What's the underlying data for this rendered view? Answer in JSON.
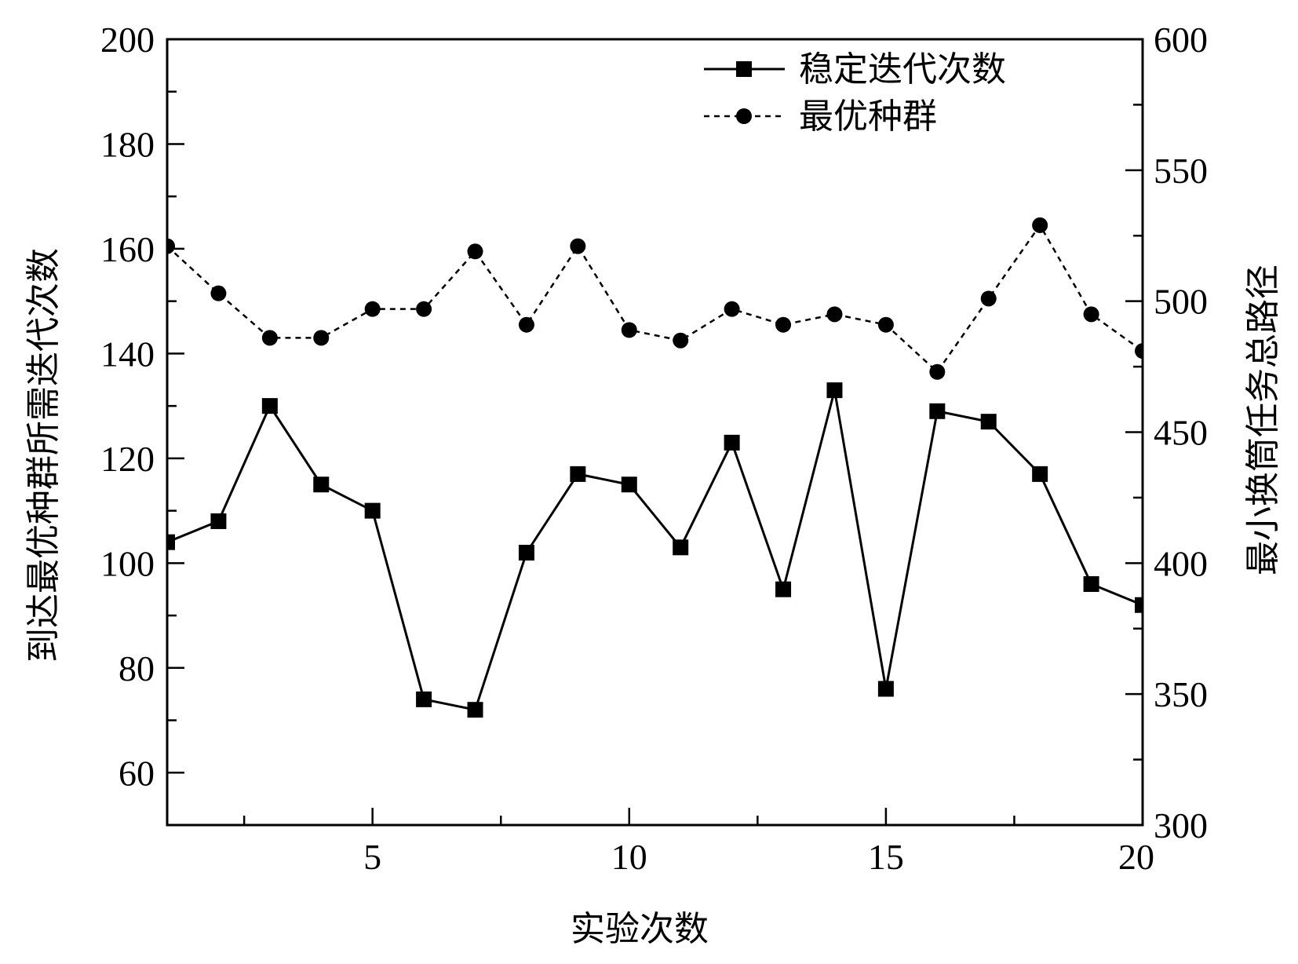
{
  "chart_data": {
    "type": "line",
    "xlabel": "实验次数",
    "ylabel_left": "到达最优种群所需迭代次数",
    "ylabel_right": "最小换筒任务总路径",
    "xlim": [
      1,
      20
    ],
    "ylim_left": [
      50,
      200
    ],
    "ylim_right": [
      300,
      600
    ],
    "x_ticks": [
      5,
      10,
      15,
      20
    ],
    "y_ticks_left": [
      60,
      80,
      100,
      120,
      140,
      160,
      180,
      200
    ],
    "y_ticks_right": [
      300,
      350,
      400,
      450,
      500,
      550,
      600
    ],
    "legend_position": "top-right",
    "grid": false,
    "x": [
      1,
      2,
      3,
      4,
      5,
      6,
      7,
      8,
      9,
      10,
      11,
      12,
      13,
      14,
      15,
      16,
      17,
      18,
      19,
      20
    ],
    "series": [
      {
        "name": "稳定迭代次数",
        "axis": "left",
        "marker": "square",
        "line_style": "solid",
        "color": "#000000",
        "values": [
          104,
          108,
          130,
          115,
          110,
          74,
          72,
          102,
          117,
          115,
          103,
          123,
          95,
          133,
          76,
          129,
          127,
          117,
          96,
          92
        ]
      },
      {
        "name": "最优种群",
        "axis": "right",
        "marker": "circle",
        "line_style": "dashed",
        "color": "#000000",
        "values": [
          521,
          503,
          486,
          486,
          497,
          497,
          519,
          491,
          521,
          489,
          485,
          497,
          491,
          495,
          491,
          473,
          501,
          529,
          495,
          481
        ]
      }
    ]
  }
}
